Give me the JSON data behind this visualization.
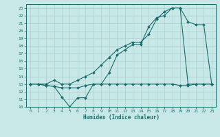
{
  "xlabel": "Humidex (Indice chaleur)",
  "xlim": [
    -0.5,
    23.5
  ],
  "ylim": [
    10,
    23.5
  ],
  "yticks": [
    10,
    11,
    12,
    13,
    14,
    15,
    16,
    17,
    18,
    19,
    20,
    21,
    22,
    23
  ],
  "xticks": [
    0,
    1,
    2,
    3,
    4,
    5,
    6,
    7,
    8,
    9,
    10,
    11,
    12,
    13,
    14,
    15,
    16,
    17,
    18,
    19,
    20,
    21,
    22,
    23
  ],
  "bg_color": "#c8e8e8",
  "grid_color": "#aad0d0",
  "line_color": "#1a6b6b",
  "line1_x": [
    0,
    1,
    2,
    3,
    4,
    5,
    6,
    7,
    8,
    9,
    10,
    11,
    12,
    13,
    14,
    15,
    16,
    17,
    18,
    19,
    20,
    21,
    22,
    23
  ],
  "line1_y": [
    13,
    13,
    13,
    13.5,
    13,
    13,
    13.5,
    14,
    14.5,
    15.5,
    16.5,
    17.5,
    18.0,
    18.5,
    18.5,
    19.5,
    21.5,
    22.5,
    23.0,
    23.0,
    21.2,
    20.8,
    20.8,
    13.0
  ],
  "line2_x": [
    0,
    1,
    2,
    3,
    4,
    5,
    6,
    7,
    8,
    9,
    10,
    11,
    12,
    13,
    14,
    15,
    16,
    17,
    18,
    19,
    20,
    21,
    22,
    23
  ],
  "line2_y": [
    13,
    13,
    12.8,
    12.7,
    11.3,
    10.0,
    11.2,
    11.2,
    13.0,
    13.0,
    14.5,
    16.8,
    17.5,
    18.2,
    18.2,
    20.5,
    21.7,
    22.0,
    23.0,
    23.0,
    13.0,
    13.0,
    13.0,
    13.0
  ],
  "line3_x": [
    0,
    1,
    2,
    3,
    4,
    5,
    6,
    7,
    8,
    9,
    10,
    11,
    12,
    13,
    14,
    15,
    16,
    17,
    18,
    19,
    20,
    21,
    22,
    23
  ],
  "line3_y": [
    13,
    13,
    12.8,
    12.7,
    12.5,
    12.5,
    12.5,
    12.8,
    13.0,
    13.0,
    13.0,
    13.0,
    13.0,
    13.0,
    13.0,
    13.0,
    13.0,
    13.0,
    13.0,
    12.8,
    12.8,
    13.0,
    13.0,
    13.0
  ]
}
